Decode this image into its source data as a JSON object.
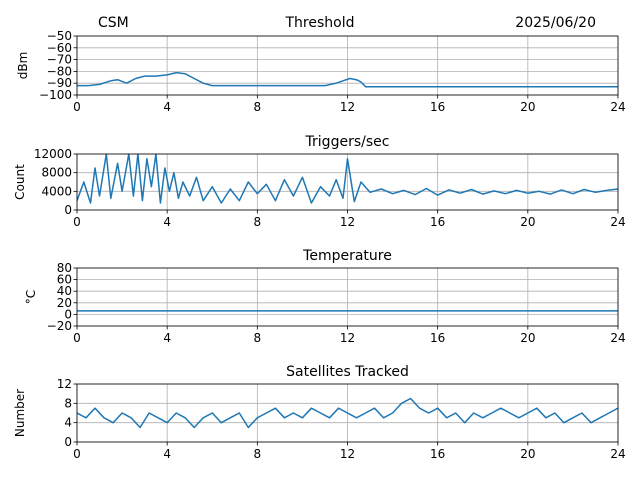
{
  "header": {
    "left": "CSM",
    "center": "Threshold",
    "right": "2025/06/20"
  },
  "colors": {
    "series": "#1f77b4",
    "grid": "#b0b0b0"
  },
  "chart_data": [
    {
      "type": "line",
      "title": "Threshold",
      "xlabel": "",
      "ylabel": "dBm",
      "xlim": [
        0,
        24
      ],
      "ylim": [
        -100,
        -50
      ],
      "x_ticks": [
        "0",
        "4",
        "8",
        "12",
        "16",
        "20",
        "24"
      ],
      "y_ticks": [
        "−50",
        "−60",
        "−70",
        "−80",
        "−90",
        "−100"
      ],
      "grid": true,
      "series": [
        {
          "x": [
            0,
            0.5,
            1.0,
            1.5,
            1.8,
            2.2,
            2.6,
            3.0,
            3.5,
            4.0,
            4.4,
            4.8,
            5.2,
            5.6,
            6.0,
            7.0,
            8.0,
            9.0,
            10.0,
            11.0,
            11.5,
            11.8,
            12.1,
            12.4,
            12.6,
            12.8,
            13.5,
            15,
            17,
            19,
            21,
            23,
            24
          ],
          "y": [
            -92,
            -92,
            -91,
            -88,
            -87,
            -90,
            -86,
            -84,
            -84,
            -83,
            -81,
            -82,
            -86,
            -90,
            -92,
            -92,
            -92,
            -92,
            -92,
            -92,
            -90,
            -88,
            -86,
            -87,
            -89,
            -93,
            -93,
            -93,
            -93,
            -93,
            -93,
            -93,
            -93
          ]
        }
      ]
    },
    {
      "type": "line",
      "title": "Triggers/sec",
      "xlabel": "",
      "ylabel": "Count",
      "xlim": [
        0,
        24
      ],
      "ylim": [
        0,
        12000
      ],
      "x_ticks": [
        "0",
        "4",
        "8",
        "12",
        "16",
        "20",
        "24"
      ],
      "y_ticks": [
        "0",
        "4000",
        "8000",
        "12000"
      ],
      "grid": true,
      "series": [
        {
          "x": [
            0,
            0.3,
            0.6,
            0.8,
            1.0,
            1.3,
            1.5,
            1.8,
            2.0,
            2.3,
            2.5,
            2.7,
            2.9,
            3.1,
            3.3,
            3.5,
            3.7,
            3.9,
            4.1,
            4.3,
            4.5,
            4.7,
            5.0,
            5.3,
            5.6,
            6.0,
            6.4,
            6.8,
            7.2,
            7.6,
            8.0,
            8.4,
            8.8,
            9.2,
            9.6,
            10.0,
            10.4,
            10.8,
            11.2,
            11.5,
            11.8,
            12.0,
            12.3,
            12.6,
            13.0,
            13.5,
            14.0,
            14.5,
            15.0,
            15.5,
            16.0,
            16.5,
            17.0,
            17.5,
            18.0,
            18.5,
            19.0,
            19.5,
            20.0,
            20.5,
            21.0,
            21.5,
            22.0,
            22.5,
            23.0,
            23.5,
            24.0
          ],
          "y": [
            2000,
            6000,
            1500,
            9000,
            3000,
            12000,
            2500,
            10000,
            4000,
            12000,
            3000,
            12000,
            2000,
            11000,
            5000,
            12000,
            1500,
            9000,
            4000,
            8000,
            2500,
            6000,
            3000,
            7000,
            2000,
            5000,
            1500,
            4500,
            2000,
            6000,
            3500,
            5500,
            2000,
            6500,
            3000,
            7000,
            1500,
            5000,
            3000,
            6500,
            2500,
            11000,
            1800,
            6000,
            3800,
            4500,
            3500,
            4200,
            3300,
            4600,
            3200,
            4300,
            3600,
            4400,
            3400,
            4100,
            3500,
            4200,
            3600,
            4000,
            3400,
            4300,
            3500,
            4400,
            3800,
            4200,
            4500
          ]
        }
      ]
    },
    {
      "type": "line",
      "title": "Temperature",
      "xlabel": "",
      "ylabel": "°C",
      "xlim": [
        0,
        24
      ],
      "ylim": [
        -20,
        80
      ],
      "x_ticks": [
        "0",
        "4",
        "8",
        "12",
        "16",
        "20",
        "24"
      ],
      "y_ticks": [
        "−20",
        "0",
        "20",
        "40",
        "60",
        "80"
      ],
      "grid": true,
      "series": [
        {
          "x": [
            0,
            24
          ],
          "y": [
            6,
            6
          ]
        }
      ]
    },
    {
      "type": "line",
      "title": "Satellites Tracked",
      "xlabel": "",
      "ylabel": "Number",
      "xlim": [
        0,
        24
      ],
      "ylim": [
        0,
        12
      ],
      "x_ticks": [
        "0",
        "4",
        "8",
        "12",
        "16",
        "20",
        "24"
      ],
      "y_ticks": [
        "0",
        "4",
        "8",
        "12"
      ],
      "grid": true,
      "series": [
        {
          "x": [
            0,
            0.4,
            0.8,
            1.2,
            1.6,
            2.0,
            2.4,
            2.8,
            3.2,
            3.6,
            4.0,
            4.4,
            4.8,
            5.2,
            5.6,
            6.0,
            6.4,
            6.8,
            7.2,
            7.6,
            8.0,
            8.4,
            8.8,
            9.2,
            9.6,
            10.0,
            10.4,
            10.8,
            11.2,
            11.6,
            12.0,
            12.4,
            12.8,
            13.2,
            13.6,
            14.0,
            14.4,
            14.8,
            15.2,
            15.6,
            16.0,
            16.4,
            16.8,
            17.2,
            17.6,
            18.0,
            18.4,
            18.8,
            19.2,
            19.6,
            20.0,
            20.4,
            20.8,
            21.2,
            21.6,
            22.0,
            22.4,
            22.8,
            23.2,
            23.6,
            24.0
          ],
          "y": [
            6,
            5,
            7,
            5,
            4,
            6,
            5,
            3,
            6,
            5,
            4,
            6,
            5,
            3,
            5,
            6,
            4,
            5,
            6,
            3,
            5,
            6,
            7,
            5,
            6,
            5,
            7,
            6,
            5,
            7,
            6,
            5,
            6,
            7,
            5,
            6,
            8,
            9,
            7,
            6,
            7,
            5,
            6,
            4,
            6,
            5,
            6,
            7,
            6,
            5,
            6,
            7,
            5,
            6,
            4,
            5,
            6,
            4,
            5,
            6,
            7
          ]
        }
      ]
    }
  ]
}
